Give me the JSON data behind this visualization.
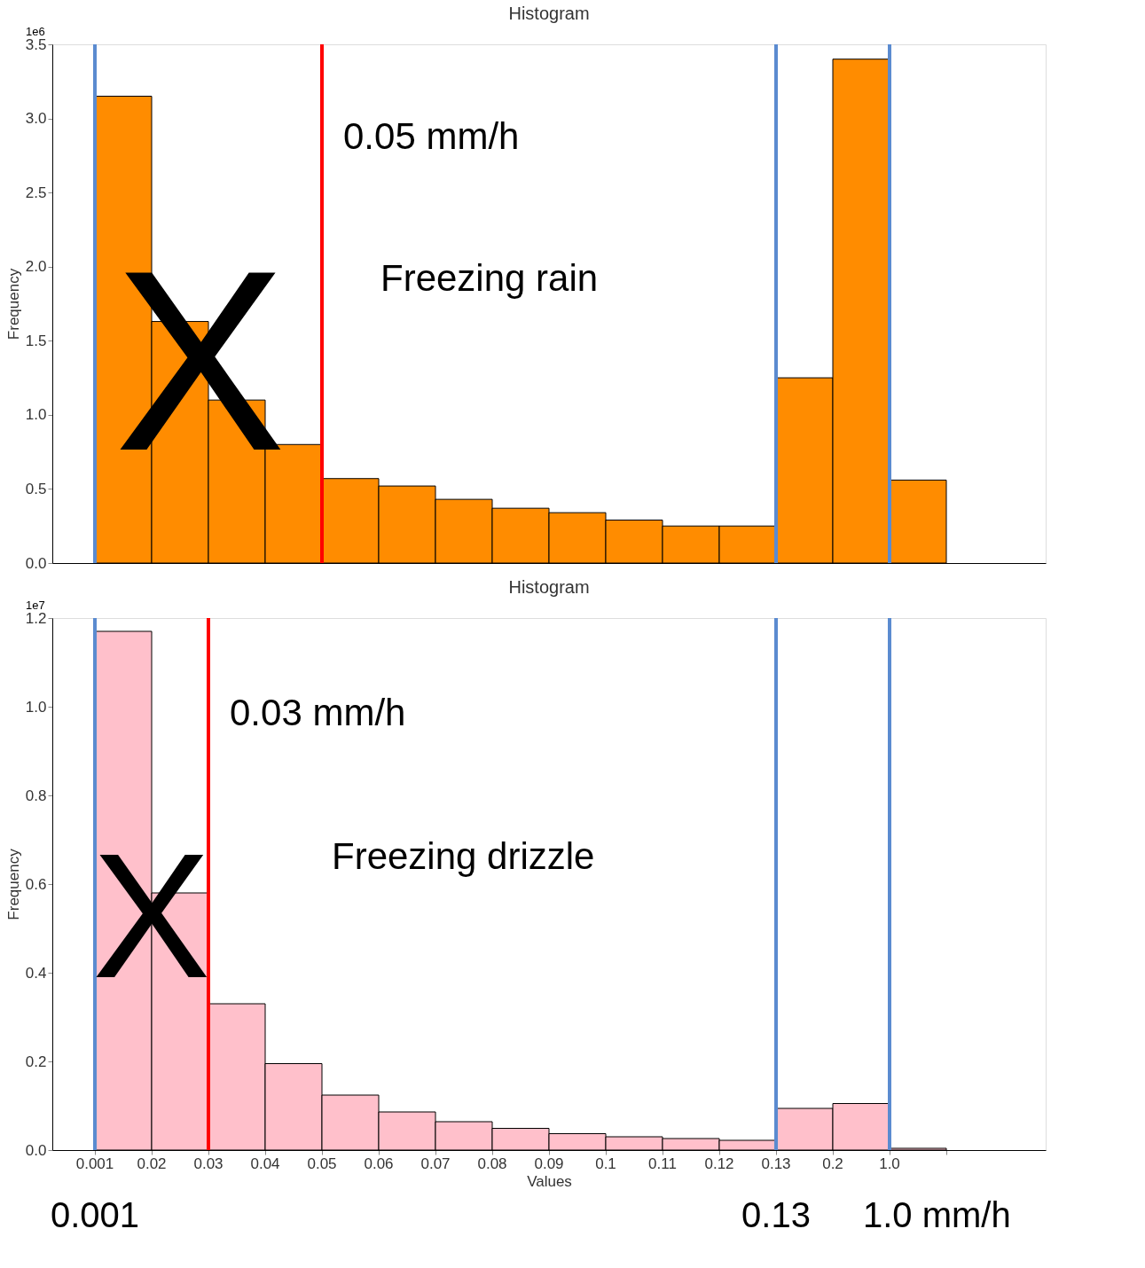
{
  "chart_data": [
    {
      "type": "bar",
      "title": "Histogram",
      "ylabel": "Frequency",
      "categories": [
        "0.001",
        "0.02",
        "0.03",
        "0.04",
        "0.05",
        "0.06",
        "0.07",
        "0.08",
        "0.09",
        "0.1",
        "0.11",
        "0.12",
        "0.13",
        "0.2",
        "1.0",
        null
      ],
      "values": [
        3.15,
        1.63,
        1.1,
        0.8,
        0.57,
        0.52,
        0.43,
        0.37,
        0.34,
        0.29,
        0.25,
        0.25,
        1.25,
        3.4,
        0.56,
        null
      ],
      "color": "#ff8c00",
      "ylim": [
        0,
        3.5
      ],
      "yticks": [
        {
          "value": 0,
          "label": "0.0"
        },
        0.5,
        {
          "value": 1,
          "label": "1.0"
        },
        1.5,
        {
          "value": 2,
          "label": "2.0"
        },
        2.5,
        {
          "value": 3,
          "label": "3.0"
        },
        3.5
      ],
      "tick_labels": "y",
      "grid": false,
      "ref_lines": [
        {
          "axis": "x",
          "value": "0.05",
          "label": "0.05 mm/h",
          "color": "#ff0000"
        },
        {
          "axis": "x",
          "value": "0.001",
          "color": "#5b8bd0"
        },
        {
          "axis": "x",
          "value": "0.13",
          "color": "#5b8bd0"
        },
        {
          "axis": "x",
          "value": "1.0",
          "color": "#5b8bd0"
        }
      ],
      "annotations": [
        "1e6",
        "Freezing rain",
        "X"
      ]
    },
    {
      "type": "bar",
      "title": "Histogram",
      "xlabel": "Values",
      "ylabel": "Frequency",
      "categories": [
        "0.001",
        "0.02",
        "0.03",
        "0.04",
        "0.05",
        "0.06",
        "0.07",
        "0.08",
        "0.09",
        "0.1",
        "0.11",
        "0.12",
        "0.13",
        "0.2",
        "1.0",
        null
      ],
      "values": [
        1.17,
        0.58,
        0.33,
        0.195,
        0.124,
        0.086,
        0.064,
        0.049,
        0.037,
        0.03,
        0.026,
        0.022,
        0.094,
        0.105,
        0.004,
        null
      ],
      "color": "#ffc0cb",
      "ylim": [
        0,
        1.2
      ],
      "yticks": [
        {
          "value": 0,
          "label": "0.0"
        },
        0.2,
        0.4,
        0.6,
        0.8,
        {
          "value": 1,
          "label": "1.0"
        },
        1.2
      ],
      "grid": false,
      "ref_lines": [
        {
          "axis": "x",
          "value": "0.03",
          "label": "0.03 mm/h",
          "color": "#ff0000"
        },
        {
          "axis": "x",
          "value": "0.001",
          "label": "0.001",
          "color": "#5b8bd0"
        },
        {
          "axis": "x",
          "value": "0.13",
          "label": "0.13",
          "color": "#5b8bd0"
        },
        {
          "axis": "x",
          "value": "1.0",
          "label": "1.0 mm/h",
          "color": "#5b8bd0"
        }
      ],
      "annotations": [
        "1e7",
        "Freezing drizzle",
        "X"
      ]
    }
  ]
}
